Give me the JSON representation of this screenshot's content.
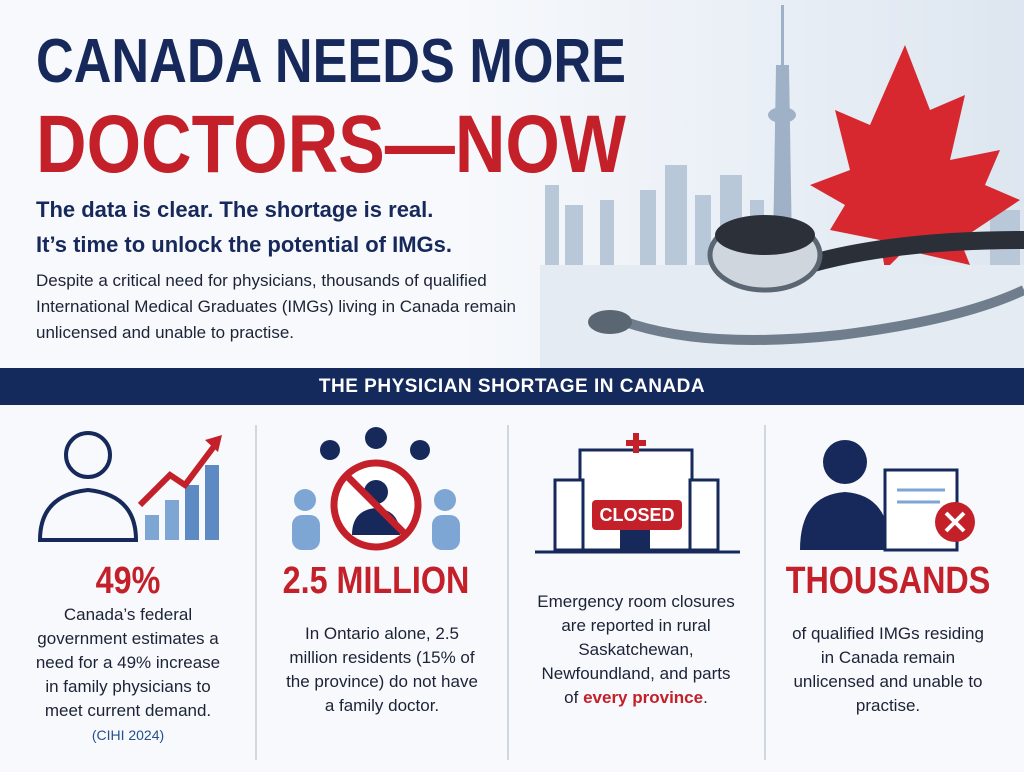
{
  "header": {
    "title_line1": "CANADA NEEDS MORE",
    "title_line2": "DOCTORS—NOW",
    "subtitle_line1": "The data is clear. The shortage is real.",
    "subtitle_line2": "It’s time to unlock the potential of IMGs.",
    "intro": "Despite a critical need for physicians, thousands of qualified International Medical Graduates (IMGs) living in Canada remain unlicensed and unable to practise."
  },
  "banner": "THE PHYSICIAN SHORTAGE IN CANADA",
  "stats": [
    {
      "headline": "49%",
      "text": "Canada’s federal government estimates a need for a 49% increase in family physicians to meet current demand.",
      "source": "(CIHI 2024)"
    },
    {
      "headline": "2.5 MILLION",
      "text": "In Ontario alone, 2.5 million residents (15% of the province) do not have a family doctor."
    },
    {
      "sign": "CLOSED",
      "text": "Emergency room closures are reported in rural Saskatchewan, Newfoundland, and parts of",
      "emphasis": "every province",
      "text_end": "."
    },
    {
      "headline": "THOUSANDS",
      "text": "of qualified IMGs residing in Canada remain unlicensed and unable to practise."
    }
  ]
}
